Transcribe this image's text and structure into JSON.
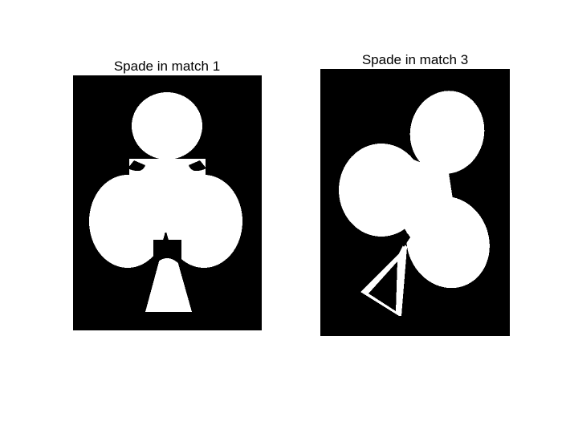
{
  "panels": [
    {
      "title": "Spade in match 1"
    },
    {
      "title": "Spade in match 3"
    }
  ],
  "colors": {
    "background": "#000000",
    "shape": "#ffffff"
  },
  "icons": [
    "club-suit-icon",
    "club-suit-rotated-icon"
  ]
}
